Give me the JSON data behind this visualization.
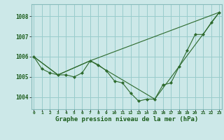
{
  "background_color": "#cce8e8",
  "grid_color": "#99cccc",
  "line_color": "#2d6a2d",
  "marker_color": "#2d6a2d",
  "xlabel": "Graphe pression niveau de la mer (hPa)",
  "xlabel_fontsize": 6.5,
  "yticks": [
    1004,
    1005,
    1006,
    1007,
    1008
  ],
  "xticks": [
    0,
    1,
    2,
    3,
    4,
    5,
    6,
    7,
    8,
    9,
    10,
    11,
    12,
    13,
    14,
    15,
    16,
    17,
    18,
    19,
    20,
    21,
    22,
    23
  ],
  "xlim": [
    -0.3,
    23.3
  ],
  "ylim": [
    1003.4,
    1008.6
  ],
  "series": [
    {
      "x": [
        0,
        1,
        2,
        3,
        4,
        5,
        6,
        7,
        8,
        9,
        10,
        11,
        12,
        13,
        14,
        15,
        16,
        17,
        18,
        19,
        20,
        21,
        22,
        23
      ],
      "y": [
        1006.0,
        1005.4,
        1005.2,
        1005.1,
        1005.1,
        1005.0,
        1005.2,
        1005.8,
        1005.6,
        1005.3,
        1004.8,
        1004.7,
        1004.2,
        1003.8,
        1003.9,
        1003.9,
        1004.6,
        1004.7,
        1005.5,
        1006.3,
        1007.1,
        1007.1,
        1007.7,
        1008.2
      ],
      "has_markers": true
    },
    {
      "x": [
        0,
        3,
        7,
        23
      ],
      "y": [
        1006.0,
        1005.1,
        1005.8,
        1008.2
      ],
      "has_markers": false
    },
    {
      "x": [
        0,
        3,
        7,
        15,
        23
      ],
      "y": [
        1006.0,
        1005.1,
        1005.8,
        1003.9,
        1008.2
      ],
      "has_markers": false
    }
  ]
}
